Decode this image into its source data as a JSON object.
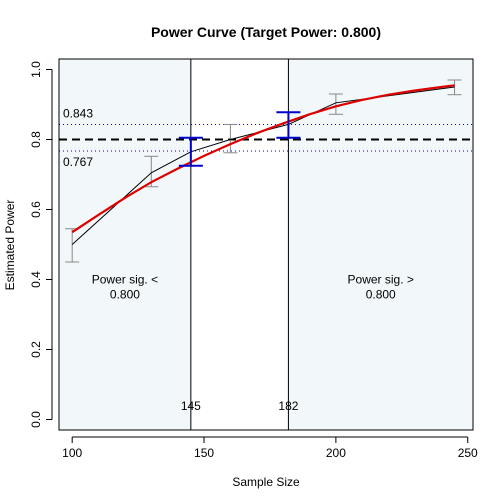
{
  "chart_data": {
    "type": "line",
    "title": "Power Curve (Target Power: 0.800)",
    "xlabel": "Sample Size",
    "ylabel": "Estimated Power",
    "xlim": [
      95,
      252
    ],
    "ylim": [
      -0.03,
      1.03
    ],
    "x_ticks": [
      100,
      150,
      200,
      250
    ],
    "y_ticks": [
      0.0,
      0.2,
      0.4,
      0.6,
      0.8,
      1.0
    ],
    "y_tick_labels": [
      "0.0",
      "0.2",
      "0.4",
      "0.6",
      "0.8",
      "1.0"
    ],
    "target_power": 0.8,
    "band_upper": 0.843,
    "band_lower": 0.767,
    "band_upper_label": "0.843",
    "band_lower_label": "0.767",
    "cutoffs": [
      {
        "x": 145,
        "label": "145"
      },
      {
        "x": 182,
        "label": "182"
      }
    ],
    "region_left_label": [
      "Power sig. <",
      "0.800"
    ],
    "region_right_label": [
      "Power sig. >",
      "0.800"
    ],
    "observed": {
      "x": [
        100,
        130,
        145,
        160,
        182,
        200,
        245
      ],
      "y": [
        0.5,
        0.705,
        0.765,
        0.8,
        0.843,
        0.905,
        0.95
      ],
      "ci_low": [
        0.45,
        0.665,
        0.725,
        0.762,
        0.805,
        0.872,
        0.928
      ],
      "ci_high": [
        0.545,
        0.752,
        0.805,
        0.843,
        0.878,
        0.93,
        0.97
      ]
    },
    "fitted": {
      "x": [
        100,
        110,
        120,
        130,
        140,
        150,
        160,
        170,
        180,
        190,
        200,
        210,
        220,
        230,
        240,
        245
      ],
      "y": [
        0.535,
        0.585,
        0.633,
        0.678,
        0.717,
        0.753,
        0.787,
        0.818,
        0.846,
        0.872,
        0.895,
        0.913,
        0.928,
        0.94,
        0.95,
        0.955
      ]
    },
    "highlight_ci": [
      {
        "x": 145,
        "low": 0.725,
        "high": 0.805
      },
      {
        "x": 182,
        "low": 0.805,
        "high": 0.878
      }
    ],
    "colors": {
      "observed": "#000000",
      "fitted": "#dd0000",
      "ci_bar": "#888888",
      "highlight_ci": "#0000cc",
      "band": "#0000cc",
      "target": "#000000",
      "region_fill": "#f2f7f9"
    }
  }
}
